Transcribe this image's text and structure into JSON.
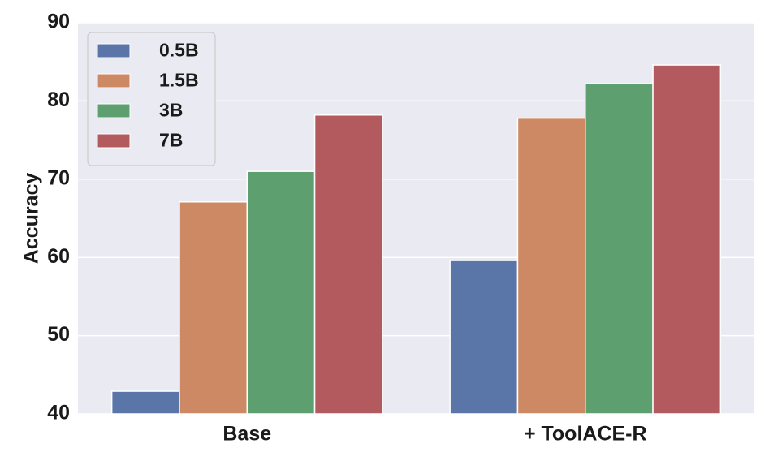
{
  "chart_data": {
    "type": "bar",
    "title": "",
    "xlabel": "",
    "ylabel": "Accuracy",
    "ylim": [
      40,
      90
    ],
    "yticks": [
      40,
      50,
      60,
      70,
      80,
      90
    ],
    "categories": [
      "Base",
      "+ ToolACE-R"
    ],
    "series": [
      {
        "name": "0.5B",
        "color": "#5a75a8",
        "values": [
          42.9,
          59.6
        ]
      },
      {
        "name": "1.5B",
        "color": "#cd8963",
        "values": [
          67.1,
          77.8
        ]
      },
      {
        "name": "3B",
        "color": "#5e9f6f",
        "values": [
          71.0,
          82.2
        ]
      },
      {
        "name": "7B",
        "color": "#b35a5f",
        "values": [
          78.2,
          84.6
        ]
      }
    ],
    "grid": true,
    "background": "#eaeaf2",
    "legend_position": "top-left"
  }
}
